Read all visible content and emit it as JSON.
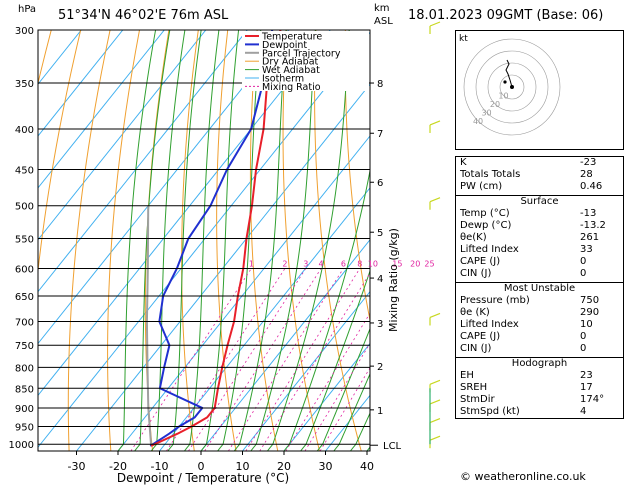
{
  "header": {
    "hpa_label": "hPa",
    "location": "51°34'N  46°02'E  76m  ASL",
    "km_label": "km",
    "asl_label": "ASL",
    "datetime": "18.01.2023  09GMT  (Base: 06)"
  },
  "legend": [
    "Temperature",
    "Dewpoint",
    "Parcel Trajectory",
    "Dry Adiabat",
    "Wet Adiabat",
    "Isotherm",
    "Mixing Ratio"
  ],
  "colors": {
    "temperature": "#e8202a",
    "dewpoint": "#2030d0",
    "parcel": "#a0a0a0",
    "dry_adiabat": "#f0a030",
    "wet_adiabat": "#30a030",
    "isotherm": "#40b0f0",
    "mixing_ratio": "#e020a0",
    "wind": "#c8d820"
  },
  "chart_data": {
    "type": "skew-t",
    "pressure_ticks": [
      300,
      350,
      400,
      450,
      500,
      550,
      600,
      650,
      700,
      750,
      800,
      850,
      900,
      950,
      1000
    ],
    "temperature_ticks": [
      -30,
      -20,
      -10,
      0,
      10,
      20,
      30,
      40
    ],
    "xlabel": "Dewpoint / Temperature (°C)",
    "ylabel_right": "Mixing Ratio (g/kg)",
    "km_ticks": [
      {
        "label": "8",
        "p": 350
      },
      {
        "label": "7",
        "p": 405
      },
      {
        "label": "6",
        "p": 467
      },
      {
        "label": "5",
        "p": 540
      },
      {
        "label": "4",
        "p": 617
      },
      {
        "label": "3",
        "p": 703
      },
      {
        "label": "2",
        "p": 797
      },
      {
        "label": "1",
        "p": 905
      }
    ],
    "lcl_label": "LCL",
    "mixing_ratio_labels": [
      "1",
      "2",
      "3",
      "4",
      "6",
      "8",
      "10",
      "15",
      "20",
      "25"
    ],
    "temperature_profile": [
      {
        "p": 1005,
        "t": -13
      },
      {
        "p": 970,
        "t": -9
      },
      {
        "p": 950,
        "t": -7
      },
      {
        "p": 925,
        "t": -5
      },
      {
        "p": 900,
        "t": -5
      },
      {
        "p": 850,
        "t": -8
      },
      {
        "p": 800,
        "t": -11
      },
      {
        "p": 750,
        "t": -14
      },
      {
        "p": 700,
        "t": -17
      },
      {
        "p": 650,
        "t": -21
      },
      {
        "p": 600,
        "t": -25
      },
      {
        "p": 550,
        "t": -30
      },
      {
        "p": 500,
        "t": -35
      },
      {
        "p": 450,
        "t": -41
      },
      {
        "p": 400,
        "t": -47
      },
      {
        "p": 350,
        "t": -55
      },
      {
        "p": 300,
        "t": -62
      }
    ],
    "dewpoint_profile": [
      {
        "p": 1005,
        "t": -13.2
      },
      {
        "p": 970,
        "t": -11
      },
      {
        "p": 950,
        "t": -10
      },
      {
        "p": 925,
        "t": -8
      },
      {
        "p": 900,
        "t": -8
      },
      {
        "p": 850,
        "t": -22
      },
      {
        "p": 800,
        "t": -25
      },
      {
        "p": 750,
        "t": -28
      },
      {
        "p": 700,
        "t": -35
      },
      {
        "p": 650,
        "t": -39
      },
      {
        "p": 600,
        "t": -41
      },
      {
        "p": 550,
        "t": -44
      },
      {
        "p": 500,
        "t": -45
      },
      {
        "p": 450,
        "t": -48
      },
      {
        "p": 400,
        "t": -50
      },
      {
        "p": 350,
        "t": -56
      },
      {
        "p": 300,
        "t": -64
      }
    ],
    "parcel_profile": [
      {
        "p": 1005,
        "t": -13
      },
      {
        "p": 900,
        "t": -21
      },
      {
        "p": 800,
        "t": -29
      },
      {
        "p": 700,
        "t": -38
      },
      {
        "p": 600,
        "t": -48
      },
      {
        "p": 500,
        "t": -60
      }
    ],
    "wind_barb_levels": [
      300,
      400,
      500,
      700,
      850,
      900,
      950,
      1000
    ]
  },
  "hodograph": {
    "unit_label": "kt",
    "ring_labels": [
      "10",
      "20",
      "30",
      "40"
    ]
  },
  "indices": [
    {
      "label": "K",
      "value": "-23"
    },
    {
      "label": "Totals Totals",
      "value": "28"
    },
    {
      "label": "PW (cm)",
      "value": "0.46"
    }
  ],
  "surface": {
    "title": "Surface",
    "rows": [
      {
        "label": "Temp (°C)",
        "value": "-13"
      },
      {
        "label": "Dewp (°C)",
        "value": "-13.2"
      },
      {
        "label": "θe(K)",
        "value": "261"
      },
      {
        "label": "Lifted Index",
        "value": "33"
      },
      {
        "label": "CAPE (J)",
        "value": "0"
      },
      {
        "label": "CIN (J)",
        "value": "0"
      }
    ]
  },
  "most_unstable": {
    "title": "Most Unstable",
    "rows": [
      {
        "label": "Pressure (mb)",
        "value": "750"
      },
      {
        "label": "θe (K)",
        "value": "290"
      },
      {
        "label": "Lifted Index",
        "value": "10"
      },
      {
        "label": "CAPE (J)",
        "value": "0"
      },
      {
        "label": "CIN (J)",
        "value": "0"
      }
    ]
  },
  "hodograph_table": {
    "title": "Hodograph",
    "rows": [
      {
        "label": "EH",
        "value": "23"
      },
      {
        "label": "SREH",
        "value": "17"
      },
      {
        "label": "StmDir",
        "value": "174°"
      },
      {
        "label": "StmSpd (kt)",
        "value": "4"
      }
    ]
  },
  "footer": {
    "copyright": "© weatheronline.co.uk"
  }
}
